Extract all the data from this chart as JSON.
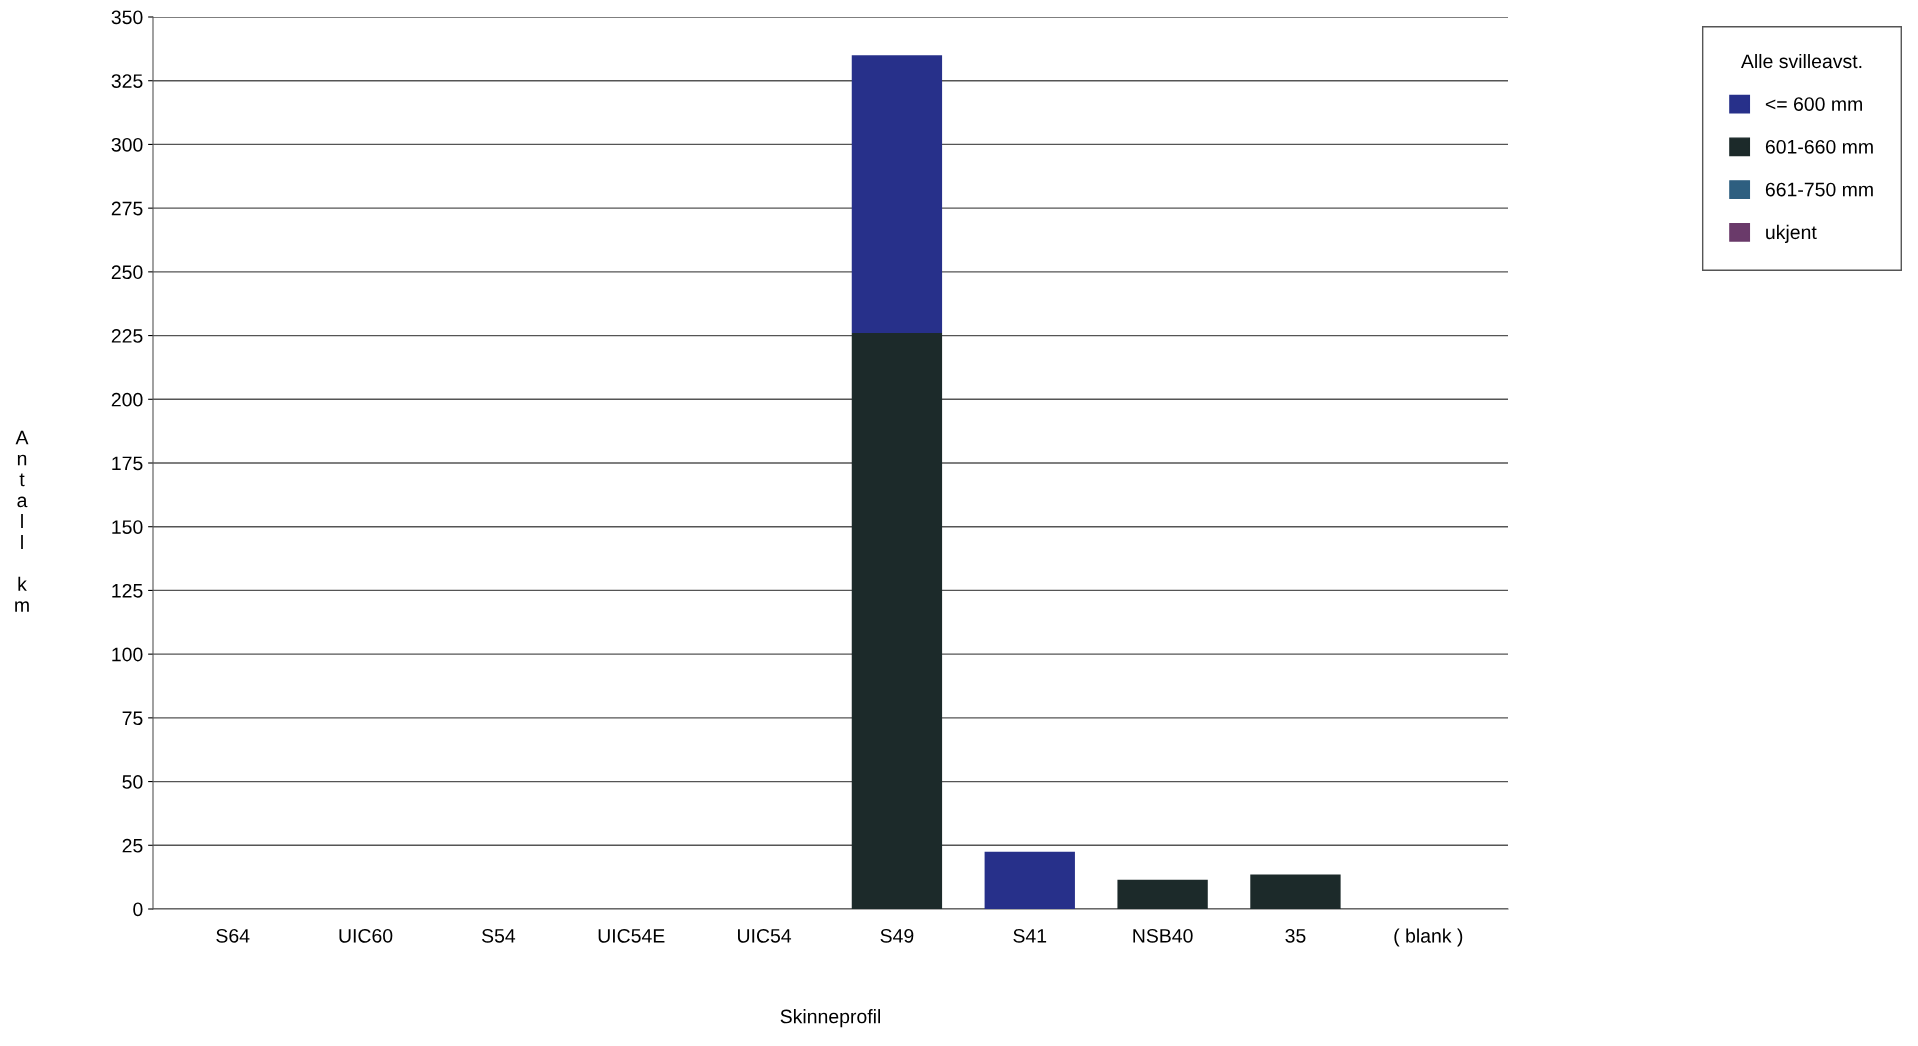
{
  "chart_data": {
    "type": "bar",
    "stacked": true,
    "xlabel": "Skinneprofil",
    "ylabel": "Antall km",
    "legend_title": "Alle svilleavst.",
    "legend": "top right",
    "grid": "y",
    "categories": [
      "S64",
      "UIC60",
      "S54",
      "UIC54E",
      "UIC54",
      "S49",
      "S41",
      "NSB40",
      "35",
      "( blank )"
    ],
    "series": [
      {
        "name": "601-660 mm",
        "color": "#1c2a2a",
        "values": [
          0,
          0,
          0,
          0,
          0,
          226,
          0,
          11.5,
          13.5,
          0
        ]
      },
      {
        "name": "<= 600 mm",
        "color": "#27308a",
        "values": [
          0,
          0,
          0,
          0,
          0,
          109,
          22.5,
          0,
          0,
          0
        ]
      },
      {
        "name": "661-750 mm",
        "color": "#2e5f80",
        "values": [
          0,
          0,
          0,
          0,
          0,
          0,
          0,
          0,
          0,
          0
        ]
      },
      {
        "name": "ukjent",
        "color": "#6a3a6a",
        "values": [
          0,
          0,
          0,
          0,
          0,
          0,
          0,
          0,
          0,
          0
        ]
      }
    ],
    "ylim": [
      0,
      350
    ],
    "yticks": [
      0,
      25,
      50,
      75,
      100,
      125,
      150,
      175,
      200,
      225,
      250,
      275,
      300,
      325,
      350
    ]
  }
}
